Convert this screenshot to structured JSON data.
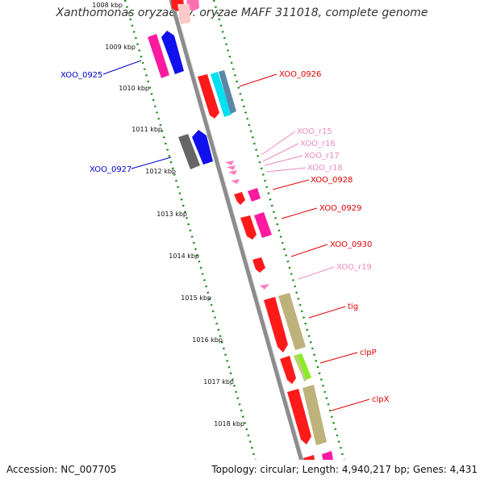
{
  "title": "Xanthomonas oryzae pv. oryzae MAFF 311018, complete genome",
  "footer": {
    "accession": "Accession: NC_007705",
    "summary": "Topology: circular; Length: 4,940,217 bp; Genes: 4,431"
  },
  "colors": {
    "backbone": "#8c8c8c",
    "tick": "#1a8a1a",
    "label_red": "#e00000",
    "label_blue": "#0000cc",
    "label_pink": "#ee88bb"
  },
  "scale": {
    "ticks": [
      "1008 kbp",
      "1009 kbp",
      "1010 kbp",
      "1011 kbp",
      "1012 kbp",
      "1013 kbp",
      "1014 kbp",
      "1015 kbp",
      "1016 kbp",
      "1017 kbp",
      "1018 kbp"
    ]
  },
  "features": [
    {
      "id": "XOO_0925",
      "label": "XOO_0925",
      "strand": "reverse",
      "color": "blue"
    },
    {
      "id": "XOO_0926",
      "label": "XOO_0926",
      "strand": "forward",
      "color": "red"
    },
    {
      "id": "XOO_0927",
      "label": "XOO_0927",
      "strand": "reverse",
      "color": "blue"
    },
    {
      "id": "XOO_r15",
      "label": "XOO_r15",
      "strand": "forward",
      "color": "pink"
    },
    {
      "id": "XOO_r16",
      "label": "XOO_r16",
      "strand": "forward",
      "color": "pink"
    },
    {
      "id": "XOO_r17",
      "label": "XOO_r17",
      "strand": "forward",
      "color": "pink"
    },
    {
      "id": "XOO_r18",
      "label": "XOO_r18",
      "strand": "forward",
      "color": "pink"
    },
    {
      "id": "XOO_0928",
      "label": "XOO_0928",
      "strand": "forward",
      "color": "red"
    },
    {
      "id": "XOO_0929",
      "label": "XOO_0929",
      "strand": "forward",
      "color": "red"
    },
    {
      "id": "XOO_0930",
      "label": "XOO_0930",
      "strand": "forward",
      "color": "red"
    },
    {
      "id": "XOO_r19",
      "label": "XOO_r19",
      "strand": "forward",
      "color": "pink"
    },
    {
      "id": "tig",
      "label": "tig",
      "strand": "forward",
      "color": "red"
    },
    {
      "id": "clpP",
      "label": "clpP",
      "strand": "forward",
      "color": "red"
    },
    {
      "id": "clpX",
      "label": "clpX",
      "strand": "forward",
      "color": "red"
    }
  ]
}
